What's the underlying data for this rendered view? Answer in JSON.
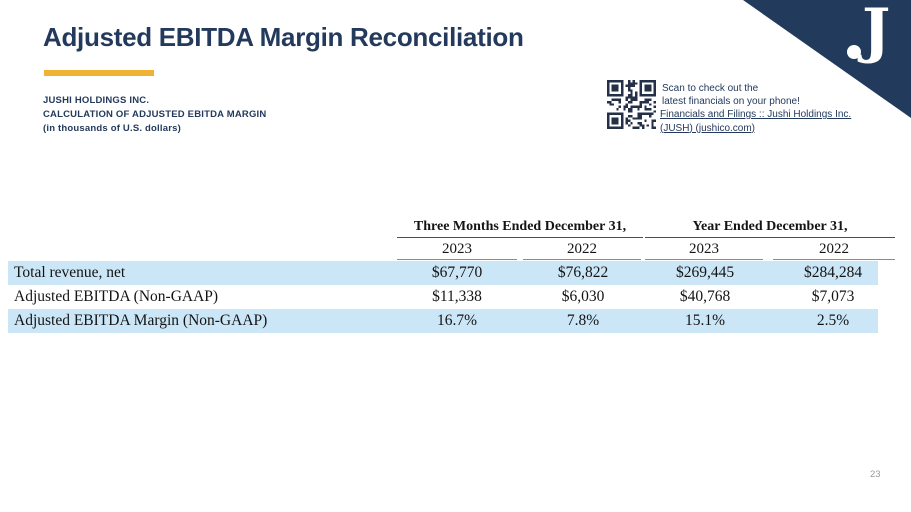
{
  "slide": {
    "title": "Adjusted EBITDA Margin Reconciliation",
    "page_number": "23"
  },
  "header_block": {
    "company": "JUSHI HOLDINGS INC.",
    "line2": "CALCULATION OF ADJUSTED EBITDA MARGIN",
    "line3": "(in thousands of U.S. dollars)"
  },
  "qr_panel": {
    "icon": "qr-code",
    "caption_line1": "Scan to check out the",
    "caption_line2": "latest financials on your phone!",
    "link_line1": "Financials and Filings :: Jushi Holdings Inc.",
    "link_line2": "(JUSH) (jushico.com)"
  },
  "logo": {
    "glyph": "J"
  },
  "colors": {
    "navy": "#233a5c",
    "gold": "#f0b233",
    "row_highlight": "#cbe6f7",
    "qr_dark": "#233048"
  },
  "table": {
    "group_headers": [
      "Three Months Ended December 31,",
      "Year Ended December 31,"
    ],
    "year_columns": [
      "2023",
      "2022",
      "2023",
      "2022"
    ],
    "rows": [
      {
        "label": "Total revenue, net",
        "values": [
          "$67,770",
          "$76,822",
          "$269,445",
          "$284,284"
        ]
      },
      {
        "label": "Adjusted EBITDA (Non-GAAP)",
        "values": [
          "$11,338",
          "$6,030",
          "$40,768",
          "$7,073"
        ]
      },
      {
        "label": "Adjusted EBITDA Margin (Non-GAAP)",
        "values": [
          "16.7%",
          "7.8%",
          "15.1%",
          "2.5%"
        ]
      }
    ]
  }
}
